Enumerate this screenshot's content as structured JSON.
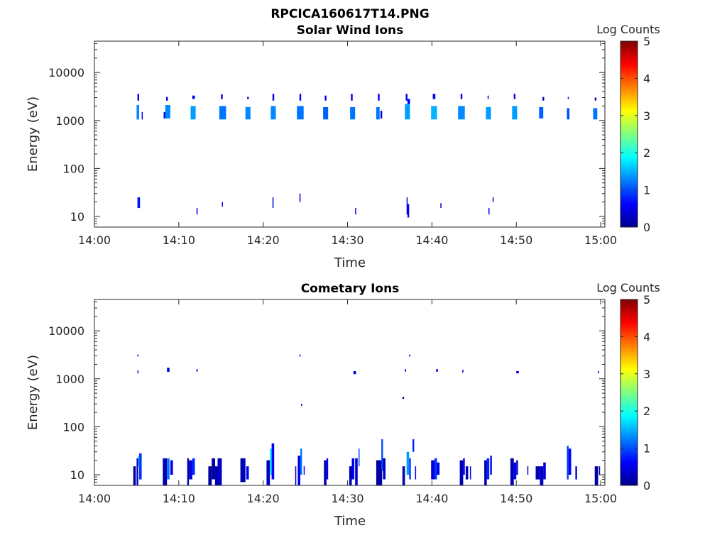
{
  "figure": {
    "title": "RPCICA160617T14.PNG",
    "colormap": [
      "#00008f",
      "#0000ff",
      "#0080ff",
      "#00ffff",
      "#80ff80",
      "#ffff00",
      "#ff8000",
      "#ff0000",
      "#800000"
    ],
    "background": "#ffffff"
  },
  "chart_data": [
    {
      "type": "heatmap",
      "title": "Solar Wind Ions",
      "xlabel": "Time",
      "ylabel": "Energy (eV)",
      "x_ticks": [
        "14:00",
        "14:10",
        "14:20",
        "14:30",
        "14:40",
        "14:50",
        "15:00"
      ],
      "x_range_minutes": [
        0,
        60.5
      ],
      "y_scale": "log",
      "y_range": [
        6,
        45000
      ],
      "y_ticks": [
        "10",
        "100",
        "1000",
        "10000"
      ],
      "colorbar": {
        "label": "Log Counts",
        "range": [
          0,
          5
        ],
        "ticks": [
          "0",
          "1",
          "2",
          "3",
          "4",
          "5"
        ]
      },
      "cells": [
        [
          5.0,
          5.3,
          1050,
          2100,
          1.3
        ],
        [
          5.1,
          5.3,
          2600,
          3600,
          0.6
        ],
        [
          5.6,
          5.7,
          1050,
          1500,
          0.5
        ],
        [
          8.2,
          8.4,
          1100,
          1500,
          0.4
        ],
        [
          8.4,
          9.0,
          1100,
          2100,
          1.3
        ],
        [
          8.5,
          8.7,
          2600,
          3100,
          0.5
        ],
        [
          11.4,
          12.0,
          1050,
          2000,
          1.4
        ],
        [
          11.6,
          11.9,
          2800,
          3300,
          0.5
        ],
        [
          14.8,
          15.6,
          1050,
          2000,
          1.2
        ],
        [
          15.0,
          15.2,
          2800,
          3500,
          0.4
        ],
        [
          17.9,
          18.5,
          1050,
          1900,
          1.3
        ],
        [
          18.1,
          18.3,
          2800,
          3100,
          0.4
        ],
        [
          20.9,
          21.5,
          1050,
          2000,
          1.3
        ],
        [
          21.1,
          21.3,
          2600,
          3600,
          0.5
        ],
        [
          24.0,
          24.8,
          1050,
          2000,
          1.2
        ],
        [
          24.3,
          24.5,
          2600,
          3600,
          0.6
        ],
        [
          27.1,
          27.7,
          1050,
          1900,
          1.1
        ],
        [
          27.3,
          27.5,
          2600,
          3300,
          0.6
        ],
        [
          30.3,
          30.9,
          1050,
          1900,
          1.2
        ],
        [
          30.4,
          30.6,
          2600,
          3600,
          0.5
        ],
        [
          33.4,
          33.8,
          1050,
          1900,
          1.2
        ],
        [
          33.9,
          34.1,
          1100,
          1600,
          0.4
        ],
        [
          33.6,
          33.8,
          2600,
          3600,
          0.5
        ],
        [
          36.8,
          37.4,
          1050,
          2200,
          1.4
        ],
        [
          36.9,
          37.1,
          2600,
          3600,
          0.5
        ],
        [
          37.1,
          37.4,
          2200,
          2800,
          0.6
        ],
        [
          39.9,
          40.6,
          1050,
          2000,
          1.5
        ],
        [
          40.1,
          40.4,
          2800,
          3600,
          0.5
        ],
        [
          43.1,
          43.9,
          1050,
          2000,
          1.3
        ],
        [
          43.4,
          43.6,
          2800,
          3600,
          0.5
        ],
        [
          46.4,
          47.0,
          1050,
          1900,
          1.4
        ],
        [
          46.6,
          46.7,
          2800,
          3300,
          0.4
        ],
        [
          49.5,
          50.1,
          1050,
          2000,
          1.4
        ],
        [
          49.7,
          49.9,
          2800,
          3600,
          0.5
        ],
        [
          52.7,
          53.2,
          1100,
          1900,
          1.1
        ],
        [
          53.1,
          53.3,
          2600,
          3100,
          0.4
        ],
        [
          56.0,
          56.3,
          1050,
          1800,
          1.0
        ],
        [
          56.1,
          56.2,
          2800,
          3100,
          0.4
        ],
        [
          59.1,
          59.6,
          1050,
          1800,
          1.2
        ],
        [
          59.3,
          59.5,
          2600,
          3000,
          0.4
        ],
        [
          5.1,
          5.4,
          15,
          25,
          0.7
        ],
        [
          12.1,
          12.2,
          11,
          15,
          0.5
        ],
        [
          15.1,
          15.2,
          16,
          20,
          0.4
        ],
        [
          21.1,
          21.2,
          15,
          25,
          0.5
        ],
        [
          24.3,
          24.4,
          20,
          30,
          0.5
        ],
        [
          30.9,
          31.0,
          11,
          15,
          0.5
        ],
        [
          37.0,
          37.1,
          11,
          25,
          0.5
        ],
        [
          37.1,
          37.3,
          9.5,
          18,
          0.6
        ],
        [
          41.0,
          41.1,
          15,
          19,
          0.4
        ],
        [
          46.7,
          46.8,
          11,
          15,
          0.5
        ],
        [
          47.2,
          47.3,
          20,
          25,
          0.4
        ]
      ]
    },
    {
      "type": "heatmap",
      "title": "Cometary Ions",
      "xlabel": "Time",
      "ylabel": "Energy (eV)",
      "x_ticks": [
        "14:00",
        "14:10",
        "14:20",
        "14:30",
        "14:40",
        "14:50",
        "15:00"
      ],
      "x_range_minutes": [
        0,
        60.5
      ],
      "y_scale": "log",
      "y_range": [
        6,
        45000
      ],
      "y_ticks": [
        "10",
        "100",
        "1000",
        "10000"
      ],
      "colorbar": {
        "label": "Log Counts",
        "range": [
          0,
          5
        ],
        "ticks": [
          "0",
          "1",
          "2",
          "3",
          "4",
          "5"
        ]
      },
      "cells": [
        [
          5.1,
          5.2,
          2900,
          3200,
          0.4
        ],
        [
          5.1,
          5.2,
          1300,
          1500,
          0.4
        ],
        [
          8.6,
          8.9,
          1400,
          1700,
          0.5
        ],
        [
          12.1,
          12.2,
          1400,
          1600,
          0.4
        ],
        [
          24.3,
          24.4,
          2900,
          3200,
          0.3
        ],
        [
          24.5,
          24.6,
          270,
          300,
          0.3
        ],
        [
          30.7,
          31.0,
          1250,
          1450,
          0.4
        ],
        [
          36.8,
          36.9,
          1400,
          1600,
          0.4
        ],
        [
          37.3,
          37.4,
          2900,
          3200,
          0.3
        ],
        [
          36.5,
          36.7,
          380,
          420,
          0.3
        ],
        [
          40.5,
          40.7,
          1400,
          1600,
          0.5
        ],
        [
          43.6,
          43.7,
          1350,
          1550,
          0.4
        ],
        [
          50.0,
          50.3,
          1300,
          1450,
          0.5
        ],
        [
          59.7,
          59.8,
          1300,
          1450,
          0.4
        ],
        [
          4.6,
          4.9,
          6,
          15,
          0.1
        ],
        [
          5.0,
          5.2,
          6,
          22,
          0.3
        ],
        [
          5.3,
          5.6,
          8,
          28,
          0.9
        ],
        [
          5.2,
          5.3,
          15,
          25,
          1.5
        ],
        [
          8.1,
          8.6,
          6,
          22,
          0.2
        ],
        [
          8.6,
          8.9,
          8,
          22,
          1.2
        ],
        [
          9.0,
          9.3,
          10,
          20,
          0.5
        ],
        [
          11.0,
          11.2,
          6,
          22,
          0.2
        ],
        [
          11.2,
          11.6,
          8,
          20,
          0.4
        ],
        [
          11.6,
          11.9,
          10,
          22,
          0.8
        ],
        [
          13.5,
          13.9,
          6,
          15,
          0.1
        ],
        [
          13.9,
          14.3,
          8,
          22,
          0.1
        ],
        [
          14.3,
          14.6,
          6,
          15,
          0.2
        ],
        [
          14.6,
          15.1,
          6,
          22,
          0.3
        ],
        [
          17.3,
          17.9,
          7,
          22,
          0.2
        ],
        [
          18.0,
          18.3,
          8,
          15,
          0.5
        ],
        [
          20.4,
          20.8,
          6,
          20,
          0.3
        ],
        [
          20.8,
          21.0,
          10,
          35,
          1.8
        ],
        [
          21.0,
          21.3,
          8,
          45,
          0.6
        ],
        [
          23.8,
          23.9,
          6,
          15,
          0.1
        ],
        [
          24.1,
          24.4,
          6,
          25,
          0.5
        ],
        [
          24.4,
          24.6,
          10,
          35,
          1.2
        ],
        [
          24.8,
          24.9,
          10,
          15,
          0.6
        ],
        [
          27.2,
          27.5,
          6,
          20,
          0.2
        ],
        [
          27.5,
          27.7,
          8,
          22,
          0.6
        ],
        [
          30.2,
          30.5,
          6,
          15,
          0.2
        ],
        [
          30.5,
          30.8,
          8,
          22,
          0.5
        ],
        [
          30.9,
          31.2,
          6,
          22,
          0.4
        ],
        [
          31.3,
          31.4,
          15,
          35,
          1.0
        ],
        [
          33.4,
          34.1,
          6,
          20,
          0.1
        ],
        [
          34.0,
          34.2,
          12,
          55,
          1.0
        ],
        [
          34.2,
          34.5,
          8,
          22,
          0.3
        ],
        [
          36.5,
          36.8,
          6,
          15,
          0.2
        ],
        [
          37.0,
          37.3,
          10,
          30,
          1.4
        ],
        [
          37.3,
          37.5,
          8,
          22,
          0.9
        ],
        [
          37.7,
          37.9,
          30,
          55,
          0.8
        ],
        [
          38.0,
          38.1,
          8,
          15,
          0.5
        ],
        [
          39.9,
          40.3,
          8,
          20,
          0.4
        ],
        [
          40.3,
          40.6,
          8,
          22,
          0.9
        ],
        [
          40.6,
          40.9,
          10,
          18,
          0.5
        ],
        [
          43.3,
          43.7,
          6,
          20,
          0.2
        ],
        [
          43.7,
          43.9,
          10,
          22,
          0.5
        ],
        [
          44.0,
          44.3,
          8,
          15,
          0.3
        ],
        [
          44.5,
          44.6,
          8,
          15,
          0.4
        ],
        [
          46.2,
          46.5,
          6,
          20,
          0.2
        ],
        [
          46.5,
          46.8,
          8,
          22,
          0.8
        ],
        [
          46.9,
          47.1,
          10,
          25,
          0.5
        ],
        [
          49.3,
          49.7,
          6,
          22,
          0.2
        ],
        [
          49.7,
          50.0,
          8,
          18,
          0.5
        ],
        [
          50.0,
          50.2,
          10,
          20,
          0.3
        ],
        [
          51.3,
          51.4,
          10,
          15,
          0.3
        ],
        [
          52.3,
          52.8,
          8,
          15,
          0.2
        ],
        [
          52.8,
          53.2,
          6,
          15,
          0.3
        ],
        [
          53.2,
          53.5,
          8,
          18,
          0.4
        ],
        [
          56.0,
          56.2,
          8,
          40,
          0.9
        ],
        [
          56.2,
          56.5,
          10,
          35,
          0.6
        ],
        [
          57.0,
          57.2,
          8,
          15,
          0.5
        ],
        [
          59.3,
          59.7,
          6,
          15,
          0.1
        ],
        [
          59.8,
          59.9,
          10,
          15,
          0.3
        ]
      ]
    }
  ]
}
